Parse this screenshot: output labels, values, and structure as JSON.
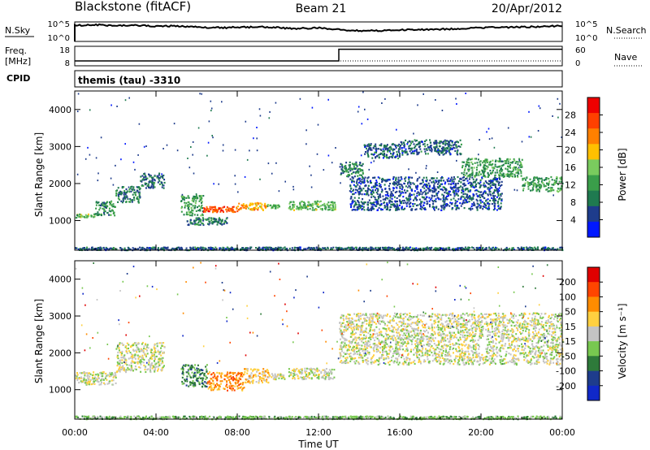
{
  "header": {
    "station": "Blackstone (fitACF)",
    "beam": "Beam 21",
    "date": "20/Apr/2012"
  },
  "panels": {
    "sky_label": "N.Sky",
    "search_label": "N.Search",
    "freq_label_1": "Freq.",
    "freq_label_2": "[MHz]",
    "nave_label": "Nave",
    "cpid_label": "CPID",
    "cpid_value": "themis (tau) -3310",
    "sky_ticks": [
      "10^5",
      "10^0"
    ],
    "search_ticks": [
      "10^5",
      "10^0"
    ],
    "freq_ticks": [
      "18",
      "8"
    ],
    "nave_ticks": [
      "60",
      "0"
    ]
  },
  "colors": {
    "power": [
      "#0018ff",
      "#1e3c8c",
      "#1f7a50",
      "#3a9e4a",
      "#7acb5e",
      "#ffc000",
      "#ff8000",
      "#ff4000",
      "#ee0000"
    ],
    "velocity": [
      "#1028c8",
      "#1e3c8c",
      "#2e7a3a",
      "#78c850",
      "#c4c4c4",
      "#ffd040",
      "#ff8c00",
      "#ff4500",
      "#e00000"
    ]
  },
  "chart_data": [
    {
      "type": "heatmap",
      "name": "power",
      "ylabel": "Slant Range [km]",
      "yticks": [
        1000,
        2000,
        3000,
        4000
      ],
      "ylim": [
        200,
        4500
      ],
      "xlim": [
        0,
        24
      ],
      "colorbar_label": "Power [dB]",
      "colorbar_ticks": [
        4,
        8,
        12,
        16,
        20,
        24,
        28
      ],
      "colorbar_range": [
        0,
        32
      ],
      "bands": [
        {
          "t0": 0.0,
          "t1": 1.0,
          "r0": 1100,
          "r1": 1200,
          "v": 14
        },
        {
          "t0": 1.0,
          "t1": 2.0,
          "r0": 1150,
          "r1": 1550,
          "v": 11
        },
        {
          "t0": 2.0,
          "t1": 3.2,
          "r0": 1500,
          "r1": 1950,
          "v": 9
        },
        {
          "t0": 3.2,
          "t1": 4.4,
          "r0": 1900,
          "r1": 2300,
          "v": 8
        },
        {
          "t0": 5.2,
          "t1": 6.3,
          "r0": 1150,
          "r1": 1700,
          "v": 12
        },
        {
          "t0": 6.3,
          "t1": 8.0,
          "r0": 1250,
          "r1": 1400,
          "v": 26
        },
        {
          "t0": 8.0,
          "t1": 9.4,
          "r0": 1300,
          "r1": 1500,
          "v": 21
        },
        {
          "t0": 9.4,
          "t1": 10.2,
          "r0": 1350,
          "r1": 1450,
          "v": 14
        },
        {
          "t0": 5.5,
          "t1": 7.5,
          "r0": 900,
          "r1": 1100,
          "v": 9
        },
        {
          "t0": 10.5,
          "t1": 12.8,
          "r0": 1300,
          "r1": 1550,
          "v": 14
        },
        {
          "t0": 13.0,
          "t1": 14.2,
          "r0": 2200,
          "r1": 2600,
          "v": 10
        },
        {
          "t0": 14.2,
          "t1": 16.0,
          "r0": 2700,
          "r1": 3100,
          "v": 7
        },
        {
          "t0": 16.0,
          "t1": 19.0,
          "r0": 2800,
          "r1": 3200,
          "v": 7
        },
        {
          "t0": 19.0,
          "t1": 22.0,
          "r0": 2200,
          "r1": 2700,
          "v": 12
        },
        {
          "t0": 22.0,
          "t1": 24.0,
          "r0": 1800,
          "r1": 2200,
          "v": 12
        },
        {
          "t0": 13.5,
          "t1": 21.0,
          "r0": 1300,
          "r1": 2200,
          "v": 6
        },
        {
          "t0": 0.0,
          "t1": 24.0,
          "r0": 220,
          "r1": 300,
          "v": 7
        }
      ]
    },
    {
      "type": "heatmap",
      "name": "velocity",
      "ylabel": "Slant Range [km]",
      "yticks": [
        1000,
        2000,
        3000,
        4000
      ],
      "ylim": [
        200,
        4500
      ],
      "xlim": [
        0,
        24
      ],
      "xlabel": "Time UT",
      "xticks": [
        "00:00",
        "04:00",
        "08:00",
        "12:00",
        "16:00",
        "20:00",
        "00:00"
      ],
      "xtick_values": [
        0,
        4,
        8,
        12,
        16,
        20,
        24
      ],
      "colorbar_label": "Velocity [m s⁻¹]",
      "colorbar_ticks": [
        "200",
        "100",
        "50",
        "15",
        "-15",
        "-50",
        "-100",
        "-200"
      ],
      "bands": [
        {
          "t0": 0.0,
          "t1": 2.0,
          "r0": 1150,
          "r1": 1500,
          "v": 4
        },
        {
          "t0": 2.0,
          "t1": 4.4,
          "r0": 1500,
          "r1": 2300,
          "v": 4
        },
        {
          "t0": 5.2,
          "t1": 6.5,
          "r0": 1100,
          "r1": 1700,
          "v": 2
        },
        {
          "t0": 6.5,
          "t1": 8.3,
          "r0": 1000,
          "r1": 1500,
          "v": 6
        },
        {
          "t0": 8.3,
          "t1": 9.5,
          "r0": 1200,
          "r1": 1600,
          "v": 5
        },
        {
          "t0": 9.5,
          "t1": 10.3,
          "r0": 1300,
          "r1": 1450,
          "v": 4
        },
        {
          "t0": 10.5,
          "t1": 12.8,
          "r0": 1300,
          "r1": 1600,
          "v": 4
        },
        {
          "t0": 13.0,
          "t1": 24.0,
          "r0": 1700,
          "r1": 3100,
          "v": 4
        },
        {
          "t0": 0.0,
          "t1": 24.0,
          "r0": 220,
          "r1": 300,
          "v": 3
        }
      ]
    }
  ],
  "line_panels": {
    "sky_series": [
      0.82,
      0.86,
      0.8,
      0.84,
      0.78,
      0.8,
      0.74,
      0.7,
      0.72,
      0.75,
      0.7,
      0.66,
      0.7,
      0.6,
      0.55,
      0.55,
      0.58,
      0.6,
      0.62,
      0.66,
      0.7,
      0.72,
      0.74,
      0.76,
      0.8
    ],
    "freq_series": [
      [
        0,
        10.5
      ],
      [
        13,
        10.5
      ],
      [
        13,
        16.5
      ],
      [
        24,
        16.5
      ]
    ],
    "freq_range": [
      8,
      18
    ]
  }
}
